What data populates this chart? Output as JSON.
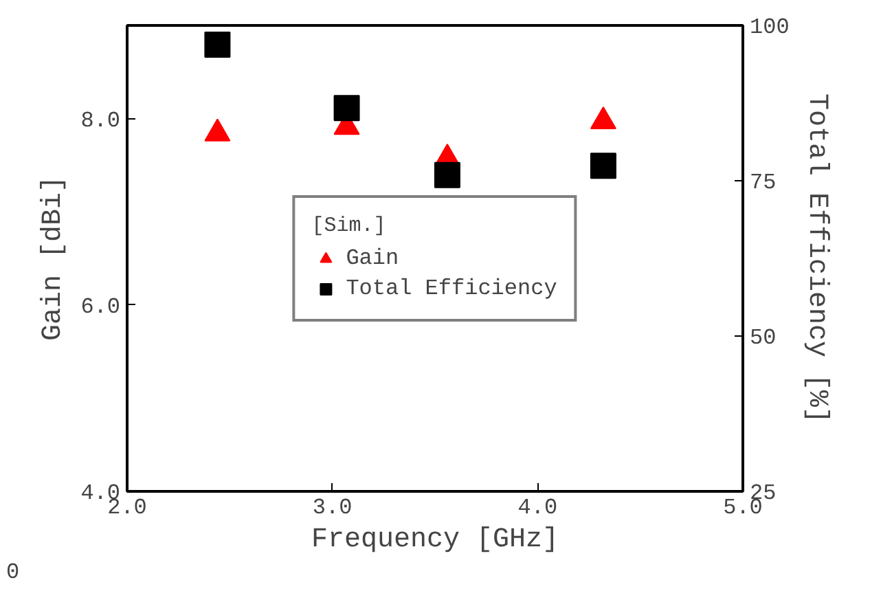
{
  "chart_data": {
    "type": "scatter",
    "xlabel": "Frequency [GHz]",
    "ylabel": "Gain [dBi]",
    "y2label": "Total Efficiency [%]",
    "legend_title": "[Sim.]",
    "legend": "center",
    "grid": false,
    "x": [
      2.44,
      3.07,
      3.56,
      4.32
    ],
    "xlim": [
      2.0,
      5.0
    ],
    "xticks": [
      {
        "value": 2,
        "label": "2.0"
      },
      {
        "value": 3,
        "label": "3.0"
      },
      {
        "value": 4,
        "label": "4.0"
      },
      {
        "value": 5,
        "label": "5.0"
      }
    ],
    "ylim": [
      4.0,
      9.0
    ],
    "yticks": [
      {
        "value": 4,
        "label": "4.0"
      },
      {
        "value": 6,
        "label": "6.0"
      },
      {
        "value": 8,
        "label": "8.0"
      }
    ],
    "y2lim": [
      25,
      100
    ],
    "y2ticks": [
      25,
      50,
      75,
      100
    ],
    "series": [
      {
        "name": "Gain",
        "color": "#ff0000",
        "marker": "triangle",
        "values": [
          7.84,
          7.91,
          7.57,
          7.97
        ]
      },
      {
        "name": "Total Efficiency",
        "color": "#000000",
        "marker": "square",
        "axis": "y2",
        "values": [
          96.9,
          86.7,
          75.9,
          77.4
        ]
      }
    ],
    "annotations": [
      "0"
    ]
  }
}
